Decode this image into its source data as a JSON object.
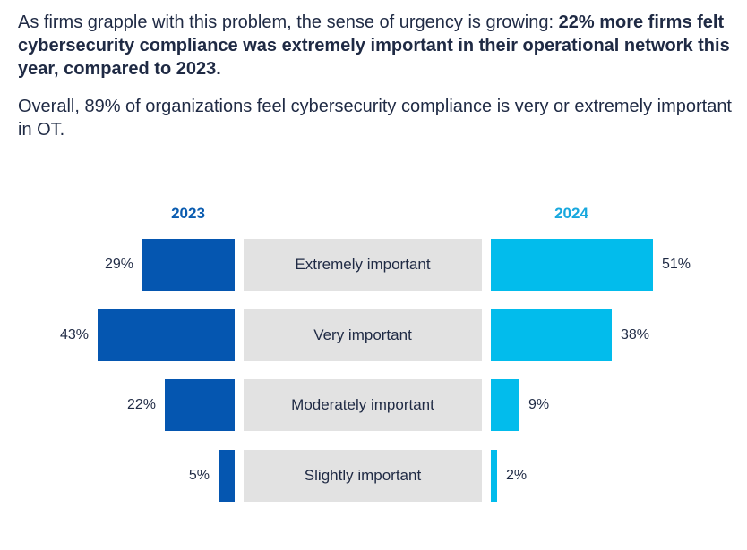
{
  "intro": {
    "lead": "As firms grapple with this problem, the sense of urgency is growing: ",
    "bold": "22% more firms felt cybersecurity compliance was extremely important in their operational network this year, compared to 2023."
  },
  "overall": "Overall, 89% of organizations feel cybersecurity compliance is very or extremely important in OT.",
  "chart_data": {
    "type": "bar",
    "layout": "butterfly",
    "title": "",
    "categories": [
      "Extremely important",
      "Very important",
      "Moderately important",
      "Slightly important"
    ],
    "series": [
      {
        "name": "2023",
        "values": [
          29,
          43,
          22,
          5
        ],
        "labels": [
          "29%",
          "43%",
          "22%",
          "5%"
        ],
        "color": "#0556b0"
      },
      {
        "name": "2024",
        "values": [
          51,
          38,
          9,
          2
        ],
        "labels": [
          "51%",
          "38%",
          "9%",
          "2%"
        ],
        "color": "#02bcec"
      }
    ],
    "unit": "%",
    "xlabel": "",
    "ylabel": ""
  }
}
